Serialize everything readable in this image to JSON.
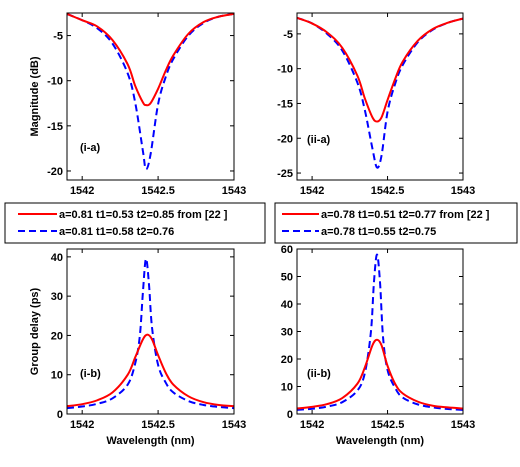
{
  "chart_data": [
    {
      "type": "line",
      "panel_label": "(i-a)",
      "xlabel": "",
      "ylabel": "Magnitude (dB)",
      "xlim": [
        1541.9,
        1543.0
      ],
      "ylim": [
        -21,
        -2.5
      ],
      "xticks": [
        1542,
        1542.5,
        1543
      ],
      "xtick_labels": [
        "1542",
        "1542.5",
        "1543"
      ],
      "yticks": [
        -20,
        -15,
        -10,
        -5
      ],
      "ytick_labels": [
        "-20",
        "-15",
        "-10",
        "-5"
      ],
      "series": [
        {
          "legend_index": 0,
          "color": "#ff0000",
          "dash": "solid",
          "x": [
            1541.9,
            1542.0,
            1542.1,
            1542.2,
            1542.3,
            1542.35,
            1542.4,
            1542.42,
            1542.45,
            1542.5,
            1542.55,
            1542.6,
            1542.7,
            1542.8,
            1542.9,
            1543.0
          ],
          "y": [
            -2.6,
            -3.3,
            -4.0,
            -5.5,
            -8.2,
            -10.6,
            -12.4,
            -12.7,
            -12.5,
            -10.9,
            -8.9,
            -7.2,
            -4.8,
            -3.5,
            -2.9,
            -2.6
          ]
        },
        {
          "legend_index": 1,
          "color": "#0000ff",
          "dash": "dashed",
          "x": [
            1541.9,
            1542.0,
            1542.1,
            1542.2,
            1542.3,
            1542.35,
            1542.4,
            1542.42,
            1542.45,
            1542.5,
            1542.55,
            1542.6,
            1542.7,
            1542.8,
            1542.9,
            1543.0
          ],
          "y": [
            -2.6,
            -3.3,
            -4.2,
            -5.9,
            -9.2,
            -12.5,
            -17.8,
            -19.8,
            -18.2,
            -12.6,
            -9.6,
            -7.6,
            -5.0,
            -3.6,
            -2.9,
            -2.6
          ]
        }
      ]
    },
    {
      "type": "line",
      "panel_label": "(ii-a)",
      "xlabel": "",
      "ylabel": "",
      "xlim": [
        1541.9,
        1543.0
      ],
      "ylim": [
        -26,
        -2
      ],
      "xticks": [
        1542,
        1542.5,
        1543
      ],
      "xtick_labels": [
        "1542",
        "1542.5",
        "1543"
      ],
      "yticks": [
        -25,
        -20,
        -15,
        -10,
        -5
      ],
      "ytick_labels": [
        "-25",
        "-20",
        "-15",
        "-10",
        "-5"
      ],
      "series": [
        {
          "legend_index": 0,
          "color": "#ff0000",
          "dash": "solid",
          "x": [
            1541.9,
            1542.0,
            1542.1,
            1542.2,
            1542.3,
            1542.35,
            1542.4,
            1542.43,
            1542.46,
            1542.5,
            1542.55,
            1542.6,
            1542.7,
            1542.8,
            1542.9,
            1543.0
          ],
          "y": [
            -2.7,
            -3.5,
            -4.8,
            -7.0,
            -11.0,
            -14.3,
            -17.0,
            -17.6,
            -17.0,
            -14.5,
            -11.5,
            -9.0,
            -6.0,
            -4.3,
            -3.4,
            -2.8
          ]
        },
        {
          "legend_index": 1,
          "color": "#0000ff",
          "dash": "dashed",
          "x": [
            1541.9,
            1542.0,
            1542.1,
            1542.2,
            1542.3,
            1542.35,
            1542.4,
            1542.43,
            1542.46,
            1542.5,
            1542.55,
            1542.6,
            1542.7,
            1542.8,
            1542.9,
            1543.0
          ],
          "y": [
            -2.7,
            -3.5,
            -5.0,
            -7.4,
            -12.0,
            -16.0,
            -21.5,
            -24.2,
            -22.5,
            -16.2,
            -12.2,
            -9.5,
            -6.2,
            -4.4,
            -3.4,
            -2.8
          ]
        }
      ]
    },
    {
      "type": "line",
      "panel_label": "(i-b)",
      "xlabel": "Wavelength (nm)",
      "ylabel": "Group delay (ps)",
      "xlim": [
        1541.9,
        1543.0
      ],
      "ylim": [
        0,
        42
      ],
      "xticks": [
        1542,
        1542.5,
        1543
      ],
      "xtick_labels": [
        "1542",
        "1542.5",
        "1543"
      ],
      "yticks": [
        0,
        10,
        20,
        30,
        40
      ],
      "ytick_labels": [
        "0",
        "10",
        "20",
        "30",
        "40"
      ],
      "series": [
        {
          "legend_index": 0,
          "color": "#ff0000",
          "dash": "solid",
          "x": [
            1541.9,
            1542.0,
            1542.1,
            1542.2,
            1542.3,
            1542.35,
            1542.4,
            1542.43,
            1542.46,
            1542.5,
            1542.55,
            1542.6,
            1542.7,
            1542.8,
            1542.9,
            1543.0
          ],
          "y": [
            2.0,
            2.5,
            3.5,
            5.5,
            10.0,
            14.5,
            19.0,
            20.2,
            19.0,
            15.0,
            10.5,
            7.5,
            4.5,
            3.0,
            2.3,
            2.0
          ]
        },
        {
          "legend_index": 1,
          "color": "#0000ff",
          "dash": "dashed",
          "x": [
            1541.9,
            1542.0,
            1542.1,
            1542.2,
            1542.3,
            1542.35,
            1542.38,
            1542.4,
            1542.42,
            1542.44,
            1542.46,
            1542.5,
            1542.55,
            1542.6,
            1542.7,
            1542.8,
            1542.9,
            1543.0
          ],
          "y": [
            1.5,
            1.9,
            2.6,
            4.0,
            7.5,
            13.0,
            20.0,
            31.0,
            39.5,
            33.0,
            22.0,
            12.5,
            8.0,
            5.5,
            3.3,
            2.3,
            1.8,
            1.5
          ]
        }
      ]
    },
    {
      "type": "line",
      "panel_label": "(ii-b)",
      "xlabel": "Wavelength (nm)",
      "ylabel": "",
      "xlim": [
        1541.9,
        1543.0
      ],
      "ylim": [
        0,
        60
      ],
      "xticks": [
        1542,
        1542.5,
        1543
      ],
      "xtick_labels": [
        "1542",
        "1542.5",
        "1543"
      ],
      "yticks": [
        0,
        10,
        20,
        30,
        40,
        50,
        60
      ],
      "ytick_labels": [
        "0",
        "10",
        "20",
        "30",
        "40",
        "50",
        "60"
      ],
      "series": [
        {
          "legend_index": 0,
          "color": "#ff0000",
          "dash": "solid",
          "x": [
            1541.9,
            1542.0,
            1542.1,
            1542.2,
            1542.3,
            1542.35,
            1542.4,
            1542.43,
            1542.46,
            1542.5,
            1542.55,
            1542.6,
            1542.7,
            1542.8,
            1542.9,
            1543.0
          ],
          "y": [
            2.0,
            2.6,
            3.6,
            5.8,
            11.0,
            17.0,
            25.0,
            27.0,
            25.0,
            17.5,
            11.0,
            7.5,
            4.5,
            3.0,
            2.4,
            2.0
          ]
        },
        {
          "legend_index": 1,
          "color": "#0000ff",
          "dash": "dashed",
          "x": [
            1541.9,
            1542.0,
            1542.1,
            1542.2,
            1542.3,
            1542.35,
            1542.39,
            1542.41,
            1542.43,
            1542.45,
            1542.47,
            1542.5,
            1542.55,
            1542.6,
            1542.7,
            1542.8,
            1542.9,
            1543.0
          ],
          "y": [
            1.5,
            1.9,
            2.7,
            4.3,
            8.5,
            15.0,
            30.0,
            48.0,
            58.0,
            48.0,
            28.0,
            16.0,
            9.5,
            6.0,
            3.5,
            2.4,
            1.8,
            1.5
          ]
        }
      ]
    }
  ],
  "legends": [
    {
      "entries": [
        {
          "label": "a=0.81 t1=0.53 t2=0.85 from [22 ]",
          "color": "#ff0000",
          "dash": "solid"
        },
        {
          "label": "a=0.81 t1=0.58 t2=0.76",
          "color": "#0000ff",
          "dash": "dashed"
        }
      ]
    },
    {
      "entries": [
        {
          "label": "a=0.78 t1=0.51 t2=0.77 from [22 ]",
          "color": "#ff0000",
          "dash": "solid"
        },
        {
          "label": "a=0.78 t1=0.55 t2=0.75",
          "color": "#0000ff",
          "dash": "dashed"
        }
      ]
    }
  ]
}
